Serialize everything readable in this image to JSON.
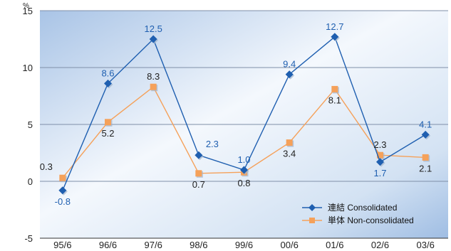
{
  "chart_data": {
    "type": "line",
    "categories": [
      "95/6",
      "96/6",
      "97/6",
      "98/6",
      "99/6",
      "00/6",
      "01/6",
      "02/6",
      "03/6"
    ],
    "series": [
      {
        "name": "連結 Consolidated",
        "values": [
          -0.8,
          8.6,
          12.5,
          2.3,
          1.0,
          9.4,
          12.7,
          1.7,
          4.1
        ],
        "labels": [
          "-0.8",
          "8.6",
          "12.5",
          "2.3",
          "1.0",
          "9.4",
          "12.7",
          "1.7",
          "4.1"
        ],
        "label_positions": [
          "below",
          "above",
          "above",
          "above-right",
          "above",
          "above",
          "above",
          "below",
          "above"
        ],
        "color": "#1f5fb0",
        "marker": "diamond"
      },
      {
        "name": "単体 Non-consolidated",
        "values": [
          0.3,
          5.2,
          8.3,
          0.7,
          0.8,
          3.4,
          8.1,
          2.3,
          2.1
        ],
        "labels": [
          "0.3",
          "5.2",
          "8.3",
          "0.7",
          "0.8",
          "3.4",
          "8.1",
          "2.3",
          "2.1"
        ],
        "label_positions": [
          "above-left",
          "below",
          "above",
          "below",
          "below",
          "below",
          "below",
          "above",
          "below"
        ],
        "color": "#f5a15a",
        "marker": "square"
      }
    ],
    "yunit": "%",
    "ylim": [
      -5,
      15
    ],
    "yticks": [
      -5,
      0,
      5,
      10,
      15
    ],
    "ytick_labels": [
      "-5",
      "0",
      "5",
      "10",
      "15"
    ],
    "grid": true,
    "legend_position": "bottom-right",
    "colors": {
      "label_consolidated": "#1f5fb0",
      "label_nonconsolidated": "#222222",
      "background_light": "#f4f8fd",
      "background_dark": "#a9c4e6",
      "gridline": "#7f8fa8"
    }
  }
}
